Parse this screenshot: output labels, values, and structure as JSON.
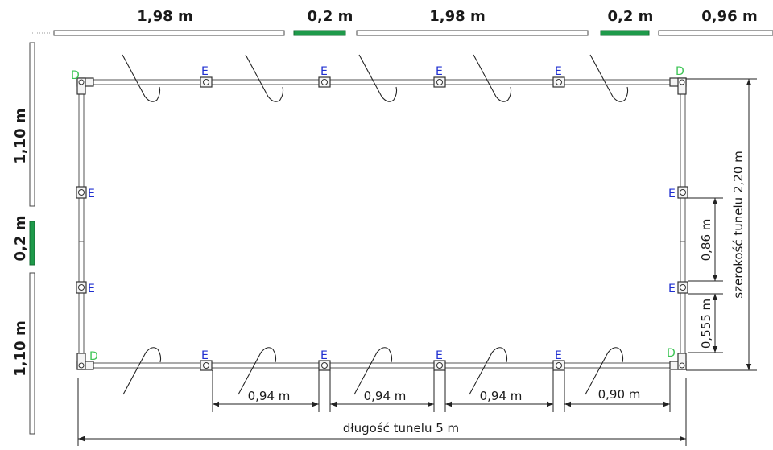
{
  "top_segments": [
    {
      "label": "1,98 m",
      "color": "white"
    },
    {
      "label": "0,2 m",
      "color": "green"
    },
    {
      "label": "1,98 m",
      "color": "white"
    },
    {
      "label": "0,2 m",
      "color": "green"
    },
    {
      "label": "0,96 m",
      "color": "white"
    }
  ],
  "left_segments": [
    {
      "label": "1,10 m",
      "color": "white"
    },
    {
      "label": "0,2 m",
      "color": "green"
    },
    {
      "label": "1,10 m",
      "color": "white"
    }
  ],
  "markers": {
    "corner": "D",
    "tee": "E"
  },
  "dimensions": {
    "gap1": "0,94 m",
    "gap2": "0,94 m",
    "gap3": "0,94 m",
    "gap4": "0,90 m",
    "length": "długość tunelu 5 m",
    "width": "szerokość tunelu 2,20 m",
    "right_upper": "0,86 m",
    "right_lower": "0,555 m"
  },
  "colors": {
    "green_segment": "#1e9a4a",
    "corner_label": "#3cc454",
    "tee_label": "#1f2fd0"
  }
}
